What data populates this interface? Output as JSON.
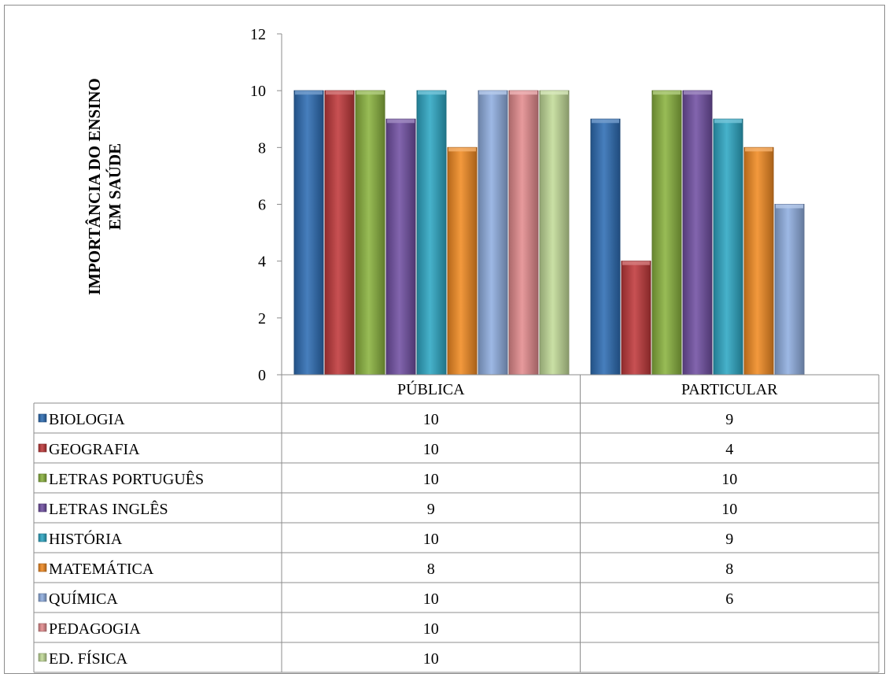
{
  "chart_data": {
    "type": "bar",
    "title": "",
    "xlabel": "",
    "ylabel": "IMPORTÂNCIA DO ENSINO EM SAÚDE",
    "ylim": [
      0,
      12
    ],
    "yticks": [
      0,
      2,
      4,
      6,
      8,
      10,
      12
    ],
    "grid": false,
    "legend": "data-table",
    "categories": [
      "PÚBLICA",
      "PARTICULAR"
    ],
    "series": [
      {
        "name": "BIOLOGIA",
        "color": "#2e6db4",
        "values": [
          10,
          9
        ]
      },
      {
        "name": "GEOGRAFIA",
        "color": "#c0393b",
        "values": [
          10,
          4
        ]
      },
      {
        "name": "LETRAS PORTUGUÊS",
        "color": "#8ab33f",
        "values": [
          10,
          10
        ]
      },
      {
        "name": "LETRAS INGLÊS",
        "color": "#7150a3",
        "values": [
          9,
          10
        ]
      },
      {
        "name": "HISTÓRIA",
        "color": "#2ea7c4",
        "values": [
          10,
          9
        ]
      },
      {
        "name": "MATEMÁTICA",
        "color": "#f18b23",
        "values": [
          8,
          8
        ]
      },
      {
        "name": "QUÍMICA",
        "color": "#90aee0",
        "values": [
          10,
          6
        ]
      },
      {
        "name": "PEDAGOGIA",
        "color": "#e48c8f",
        "values": [
          10,
          null
        ]
      },
      {
        "name": "ED. FÍSICA",
        "color": "#c3dc99",
        "values": [
          10,
          null
        ]
      }
    ]
  }
}
